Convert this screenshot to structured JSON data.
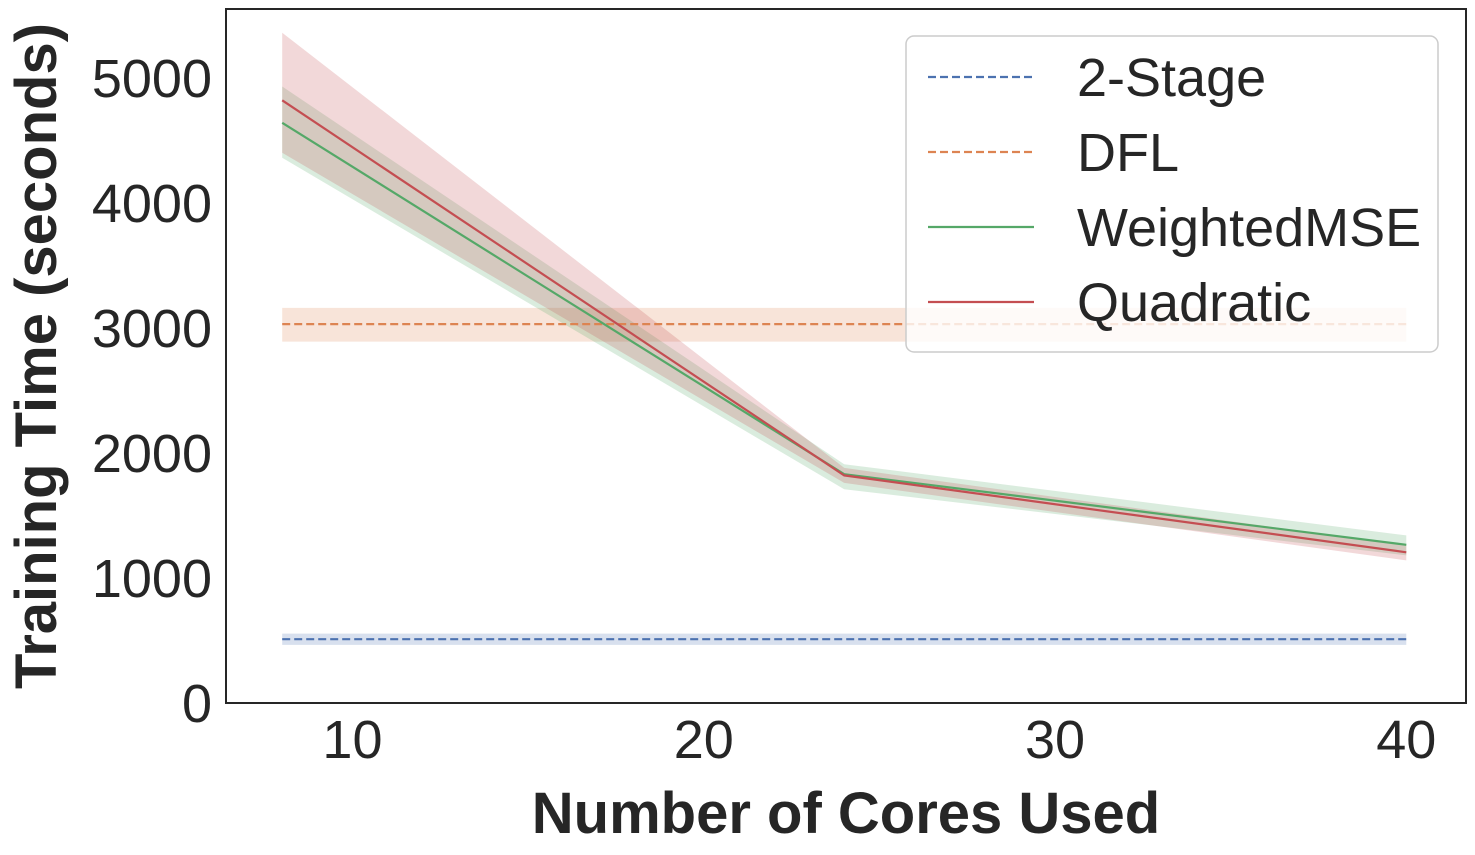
{
  "chart_data": {
    "type": "line",
    "title": "",
    "xlabel": "Number of Cores Used",
    "ylabel": "Training Time (seconds)",
    "xlim": [
      6.4,
      41.7
    ],
    "ylim": [
      0,
      5550
    ],
    "xticks": [
      10,
      20,
      30,
      40
    ],
    "yticks": [
      0,
      1000,
      2000,
      3000,
      4000,
      5000
    ],
    "grid": false,
    "legend_position": "top-right",
    "series": [
      {
        "name": "2-Stage",
        "color": "#4c72b0",
        "dash": true,
        "x": [
          8,
          40
        ],
        "values": [
          510,
          510
        ],
        "lower": [
          465,
          465
        ],
        "upper": [
          555,
          555
        ]
      },
      {
        "name": "DFL",
        "color": "#dd8452",
        "dash": true,
        "x": [
          8,
          40
        ],
        "values": [
          3030,
          3030
        ],
        "lower": [
          2890,
          2890
        ],
        "upper": [
          3160,
          3160
        ]
      },
      {
        "name": "WeightedMSE",
        "color": "#55a868",
        "dash": false,
        "x": [
          8,
          24,
          40
        ],
        "values": [
          4640,
          1830,
          1265
        ],
        "lower": [
          4360,
          1710,
          1180
        ],
        "upper": [
          4930,
          1910,
          1340
        ]
      },
      {
        "name": "Quadratic",
        "color": "#c44e52",
        "dash": false,
        "x": [
          8,
          24,
          40
        ],
        "values": [
          4820,
          1820,
          1205
        ],
        "lower": [
          4400,
          1760,
          1140
        ],
        "upper": [
          5360,
          1880,
          1260
        ]
      }
    ]
  }
}
